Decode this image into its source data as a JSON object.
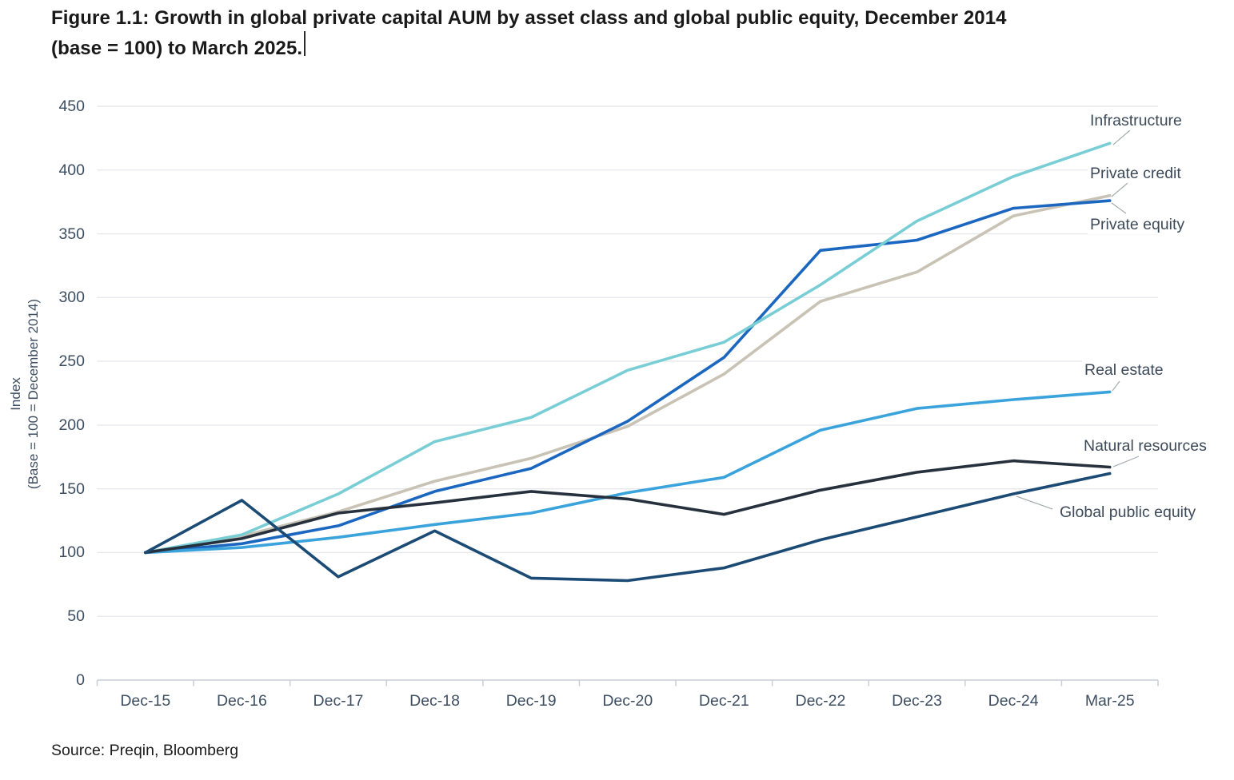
{
  "title": {
    "line1": "Figure 1.1: Growth in global private capital AUM by asset class and global public equity, December 2014",
    "line2": "(base = 100) to March 2025."
  },
  "y_axis": {
    "label_line1": "Index",
    "label_line2": "(Base = 100 = December 2014)",
    "ticks": [
      450,
      400,
      350,
      300,
      250,
      200,
      150,
      100,
      50,
      0
    ]
  },
  "x_axis": {
    "labels": [
      "Dec-15",
      "Dec-16",
      "Dec-17",
      "Dec-18",
      "Dec-19",
      "Dec-20",
      "Dec-21",
      "Dec-22",
      "Dec-23",
      "Dec-24",
      "Mar-25"
    ]
  },
  "source": "Source: Preqin, Bloomberg",
  "colors": {
    "grid": "#e7e8ee",
    "axis": "#c9cdd6",
    "tick_text": "#3e4e62",
    "label_text": "#3d4a59",
    "callout": "#a6abb1",
    "title_text": "#191919"
  },
  "chart_data": {
    "type": "line",
    "title": "Growth in global private capital AUM by asset class and global public equity, December 2014 (base = 100) to March 2025",
    "xlabel": "",
    "ylabel": "Index (Base = 100 = December 2014)",
    "ylim": [
      0,
      450
    ],
    "ytick_step": 50,
    "grid": "horizontal-only",
    "legend_position": "right-edge-annotations",
    "x": [
      "Dec-15",
      "Dec-16",
      "Dec-17",
      "Dec-18",
      "Dec-19",
      "Dec-20",
      "Dec-21",
      "Dec-22",
      "Dec-23",
      "Dec-24",
      "Mar-25"
    ],
    "series": [
      {
        "name": "Infrastructure",
        "color": "#79ced6",
        "values": [
          100,
          114,
          146,
          187,
          206,
          243,
          265,
          310,
          360,
          395,
          421
        ]
      },
      {
        "name": "Private credit",
        "color": "#c9c3b5",
        "values": [
          100,
          113,
          132,
          156,
          174,
          199,
          240,
          297,
          320,
          364,
          380
        ]
      },
      {
        "name": "Private equity",
        "color": "#1b67c0",
        "values": [
          100,
          107,
          121,
          148,
          166,
          203,
          253,
          337,
          345,
          370,
          376
        ]
      },
      {
        "name": "Real estate",
        "color": "#3aa3dc",
        "values": [
          100,
          104,
          112,
          122,
          131,
          147,
          159,
          196,
          213,
          220,
          226
        ]
      },
      {
        "name": "Natural resources",
        "color": "#26313d",
        "values": [
          100,
          111,
          131,
          139,
          148,
          142,
          130,
          149,
          163,
          172,
          167
        ]
      },
      {
        "name": "Global public equity",
        "color": "#1b4b75",
        "values": [
          100,
          141,
          81,
          117,
          80,
          78,
          88,
          110,
          128,
          146,
          162
        ]
      }
    ]
  }
}
